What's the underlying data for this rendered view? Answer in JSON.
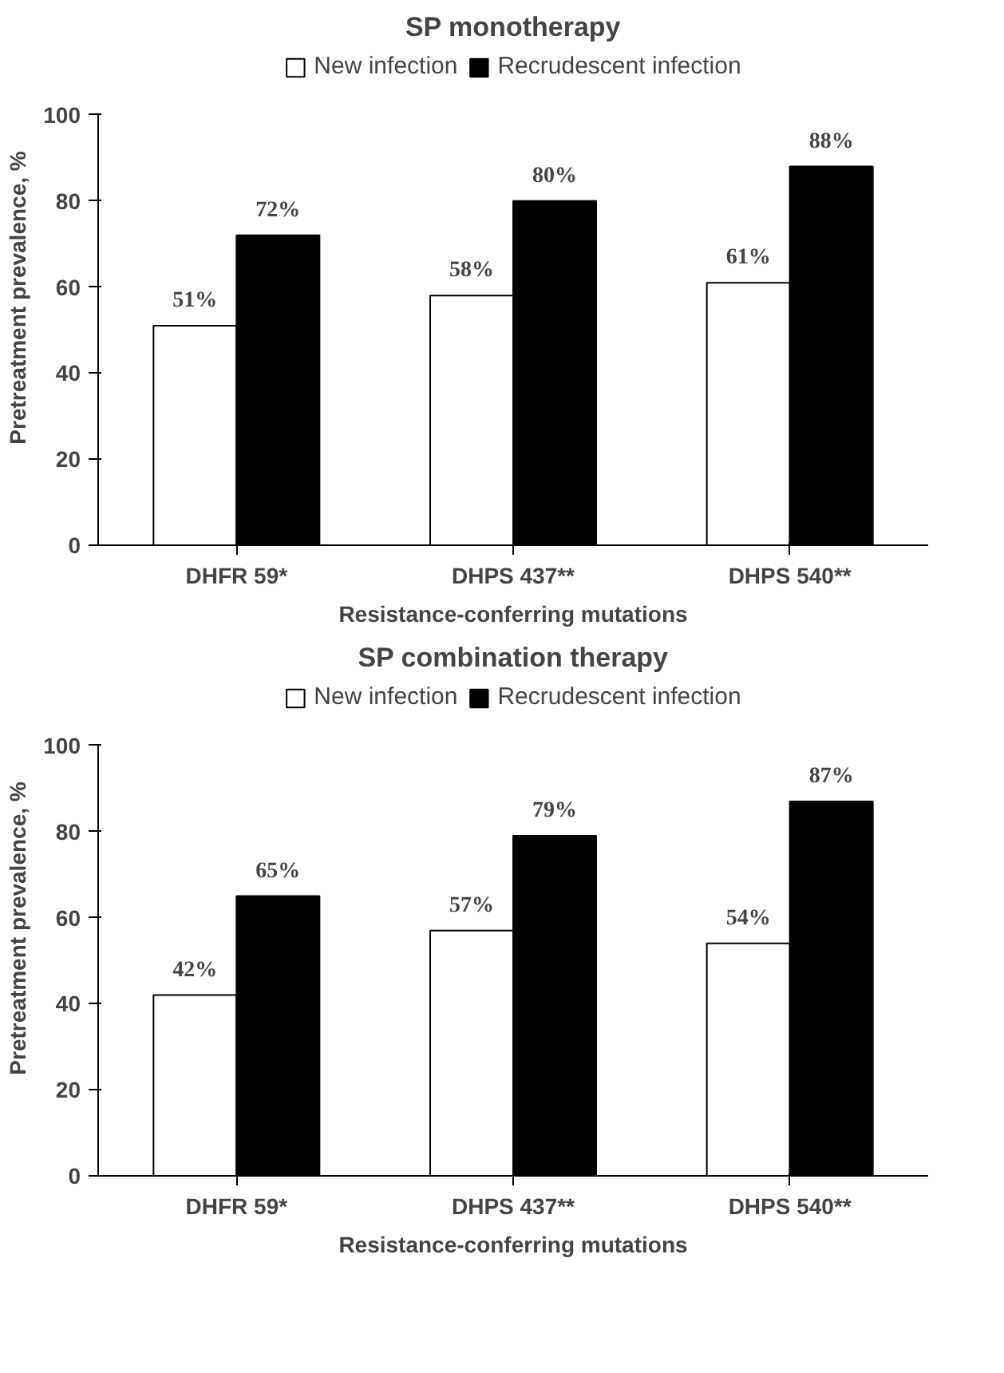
{
  "chart_data": [
    {
      "type": "bar",
      "title": "SP monotherapy",
      "xlabel": "Resistance-conferring mutations",
      "ylabel": "Pretreatment prevalence, %",
      "categories": [
        "DHFR 59*",
        "DHPS 437**",
        "DHPS 540**"
      ],
      "ylim": [
        0,
        100
      ],
      "yticks": [
        0,
        20,
        40,
        60,
        80,
        100
      ],
      "grid": false,
      "legend": "top",
      "series": [
        {
          "name": "New infection",
          "color": "#ffffff",
          "values": [
            51,
            58,
            61
          ],
          "value_labels": [
            "51%",
            "58%",
            "61%"
          ]
        },
        {
          "name": "Recrudescent infection",
          "color": "#000000",
          "values": [
            72,
            80,
            88
          ],
          "value_labels": [
            "72%",
            "80%",
            "88%"
          ]
        }
      ]
    },
    {
      "type": "bar",
      "title": "SP combination therapy",
      "xlabel": "Resistance-conferring mutations",
      "ylabel": "Pretreatment prevalence, %",
      "categories": [
        "DHFR 59*",
        "DHPS 437**",
        "DHPS 540**"
      ],
      "ylim": [
        0,
        100
      ],
      "yticks": [
        0,
        20,
        40,
        60,
        80,
        100
      ],
      "grid": false,
      "legend": "top",
      "series": [
        {
          "name": "New infection",
          "color": "#ffffff",
          "values": [
            42,
            57,
            54
          ],
          "value_labels": [
            "42%",
            "57%",
            "54%"
          ]
        },
        {
          "name": "Recrudescent infection",
          "color": "#000000",
          "values": [
            65,
            79,
            87
          ],
          "value_labels": [
            "65%",
            "79%",
            "87%"
          ]
        }
      ]
    }
  ]
}
